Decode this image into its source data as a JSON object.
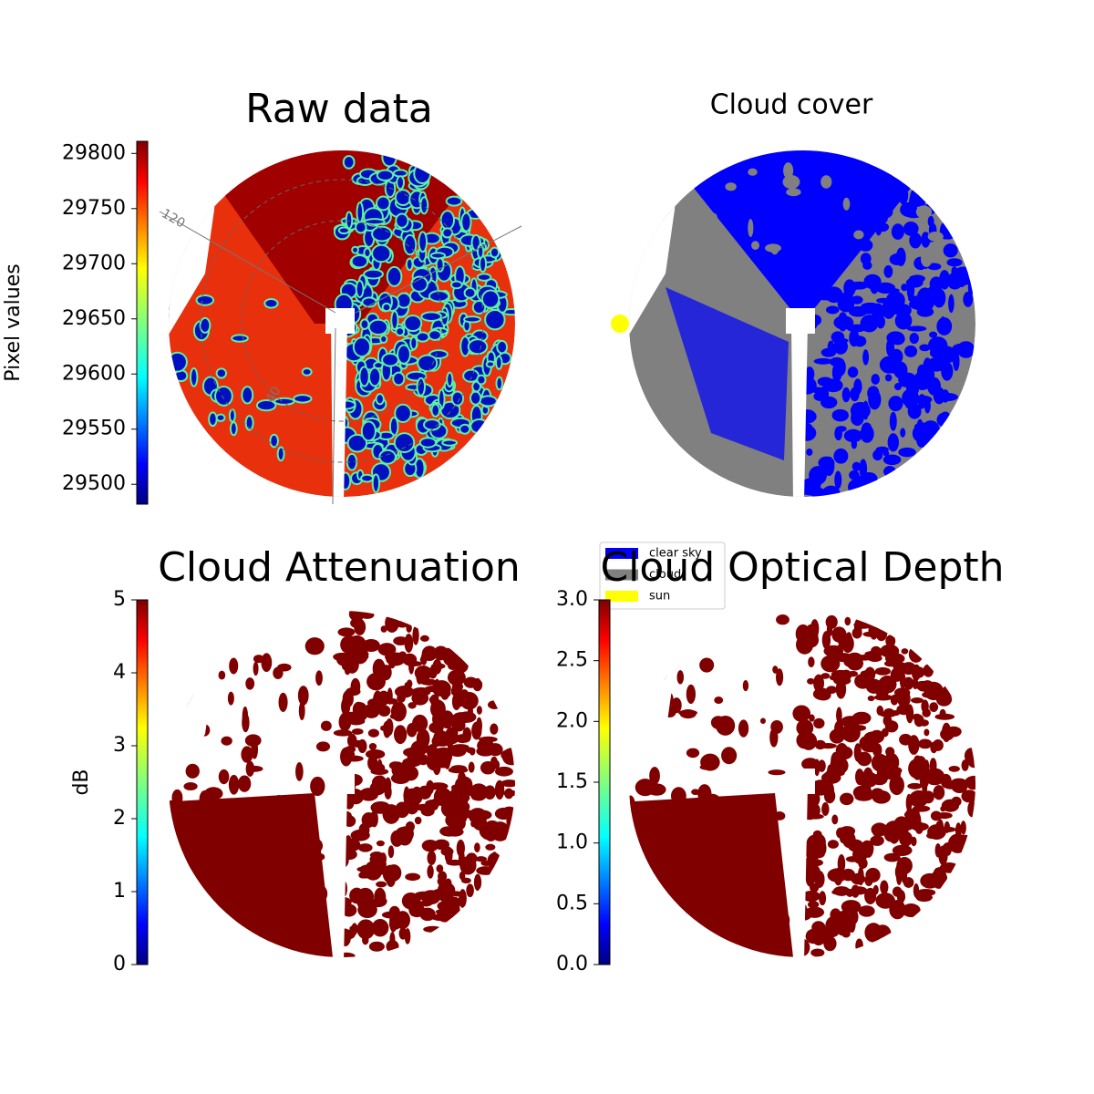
{
  "chart_data": [
    {
      "type": "image",
      "title": "Raw data",
      "colorbar_label": "Pixel values",
      "colormap": "jet",
      "ylim": [
        29482,
        29811
      ],
      "yticks": [
        29500,
        29550,
        29600,
        29650,
        29700,
        29750,
        29800
      ],
      "annotations": [
        "120",
        "40"
      ]
    },
    {
      "type": "image",
      "title": "Cloud cover",
      "series": [
        {
          "name": "clear sky",
          "color": "#0000ff"
        },
        {
          "name": "cloud",
          "color": "#808080"
        },
        {
          "name": "sun",
          "color": "#ffff00"
        }
      ]
    },
    {
      "type": "image",
      "title": "Cloud Attenuation",
      "colorbar_label": "dB",
      "colormap": "jet",
      "ylim": [
        0,
        5
      ],
      "yticks": [
        0,
        1,
        2,
        3,
        4,
        5
      ]
    },
    {
      "type": "image",
      "title": "Cloud Optical Depth",
      "colormap": "jet",
      "ylim": [
        0,
        3
      ],
      "yticks": [
        {
          "value": 0,
          "label": "0.0"
        },
        0.5,
        {
          "value": 1,
          "label": "1.0"
        },
        1.5,
        {
          "value": 2,
          "label": "2.0"
        },
        2.5,
        {
          "value": 3,
          "label": "3.0"
        }
      ]
    }
  ]
}
